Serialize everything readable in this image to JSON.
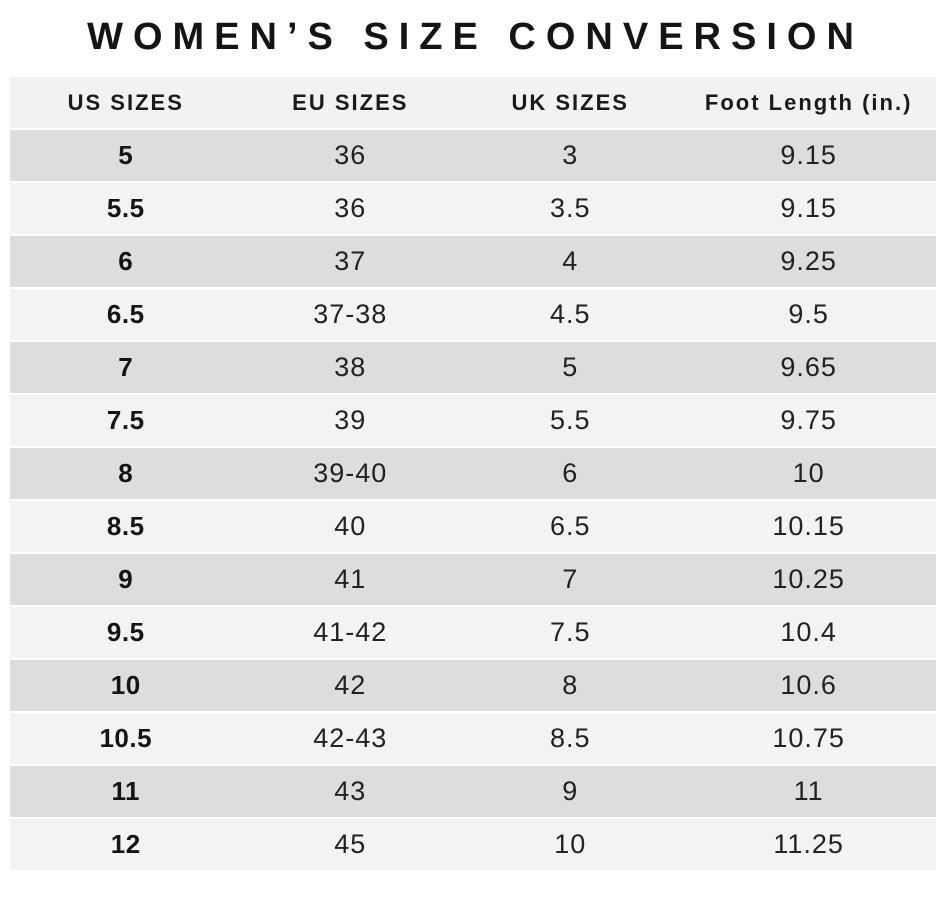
{
  "title": "WOMEN’S SIZE CONVERSION",
  "chart_data": {
    "type": "table",
    "title": "WOMEN’S SIZE CONVERSION",
    "columns": [
      "US SIZES",
      "EU SIZES",
      "UK SIZES",
      "Foot Length (in.)"
    ],
    "rows": [
      [
        "5",
        "36",
        "3",
        "9.15"
      ],
      [
        "5.5",
        "36",
        "3.5",
        "9.15"
      ],
      [
        "6",
        "37",
        "4",
        "9.25"
      ],
      [
        "6.5",
        "37-38",
        "4.5",
        "9.5"
      ],
      [
        "7",
        "38",
        "5",
        "9.65"
      ],
      [
        "7.5",
        "39",
        "5.5",
        "9.75"
      ],
      [
        "8",
        "39-40",
        "6",
        "10"
      ],
      [
        "8.5",
        "40",
        "6.5",
        "10.15"
      ],
      [
        "9",
        "41",
        "7",
        "10.25"
      ],
      [
        "9.5",
        "41-42",
        "7.5",
        "10.4"
      ],
      [
        "10",
        "42",
        "8",
        "10.6"
      ],
      [
        "10.5",
        "42-43",
        "8.5",
        "10.75"
      ],
      [
        "11",
        "43",
        "9",
        "11"
      ],
      [
        "12",
        "45",
        "10",
        "11.25"
      ]
    ],
    "layout": {
      "legend": "none",
      "grid": "striped-rows",
      "stripe_pattern": "dark-light-alternating"
    }
  },
  "colors": {
    "header_background": "#f2f2f2",
    "row_dark": "#dcddde",
    "row_light": "#f2f3f3",
    "text": "#222222",
    "title_text": "#141414",
    "page_background": "#ffffff"
  }
}
